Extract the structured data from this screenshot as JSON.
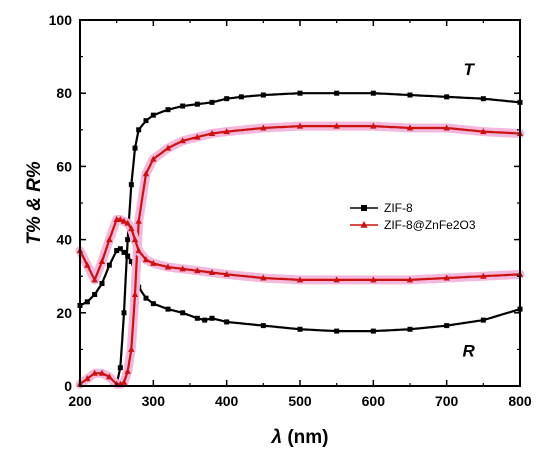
{
  "chart_data": {
    "type": "line",
    "xlabel_symbol": "λ",
    "xlabel_unit": " (nm)",
    "ylabel": "T% & R%",
    "xlim": [
      200,
      800
    ],
    "ylim": [
      0,
      100
    ],
    "xticks": [
      200,
      300,
      400,
      500,
      600,
      700,
      800
    ],
    "yticks": [
      0,
      20,
      40,
      60,
      80,
      100
    ],
    "grid": false,
    "legend_position": "right-middle",
    "annotations": [
      {
        "text": "T",
        "x": 730,
        "y": 85
      },
      {
        "text": "R",
        "x": 730,
        "y": 8
      }
    ],
    "series": [
      {
        "name": "ZIF-8",
        "marker": "square",
        "color": "#000000",
        "curves": [
          {
            "label": "T",
            "x": [
              200,
              210,
              220,
              230,
              240,
              245,
              250,
              255,
              260,
              265,
              270,
              275,
              280,
              290,
              300,
              320,
              340,
              360,
              380,
              400,
              420,
              450,
              500,
              550,
              600,
              650,
              700,
              750,
              800
            ],
            "y": [
              0.5,
              2,
              3.5,
              3.5,
              2.5,
              0.5,
              0.5,
              5,
              20,
              40,
              55,
              65,
              70,
              72.5,
              74,
              75.5,
              76.5,
              77,
              77.5,
              78.5,
              79,
              79.5,
              80,
              80,
              80,
              79.5,
              79,
              78.5,
              77.5
            ]
          },
          {
            "label": "R",
            "x": [
              200,
              210,
              220,
              230,
              240,
              250,
              255,
              260,
              265,
              270,
              275,
              280,
              290,
              300,
              320,
              340,
              360,
              370,
              380,
              400,
              450,
              500,
              550,
              600,
              650,
              700,
              750,
              800
            ],
            "y": [
              22,
              23,
              25,
              28,
              33,
              37,
              37.5,
              36.5,
              35.5,
              34,
              31,
              27,
              24,
              22.5,
              21,
              20,
              18.5,
              18,
              18.5,
              17.5,
              16.5,
              15.5,
              15,
              15,
              15.5,
              16.5,
              18,
              21
            ]
          }
        ]
      },
      {
        "name": "ZIF-8@ZnFe2O3",
        "marker": "triangle",
        "color": "#cc1111",
        "curves": [
          {
            "label": "T",
            "x": [
              200,
              210,
              220,
              230,
              240,
              250,
              255,
              260,
              265,
              270,
              275,
              280,
              290,
              300,
              320,
              340,
              360,
              380,
              400,
              450,
              500,
              550,
              600,
              650,
              700,
              750,
              800
            ],
            "y": [
              0.5,
              2,
              3.5,
              3.5,
              2.5,
              0.5,
              0.5,
              1,
              4,
              10,
              25,
              45,
              58,
              62,
              65,
              67,
              68,
              69,
              69.5,
              70.5,
              71,
              71,
              71,
              70.5,
              70.5,
              69.5,
              69
            ]
          },
          {
            "label": "R",
            "x": [
              200,
              210,
              220,
              230,
              240,
              250,
              255,
              260,
              265,
              270,
              275,
              280,
              290,
              300,
              320,
              340,
              360,
              380,
              400,
              450,
              500,
              550,
              600,
              650,
              700,
              750,
              800
            ],
            "y": [
              37,
              33,
              29,
              34,
              40,
              45.5,
              45.5,
              45,
              44.5,
              43,
              40,
              37,
              34.5,
              33.5,
              32.5,
              32,
              31.5,
              31,
              30.5,
              29.5,
              29,
              29,
              29,
              29,
              29.5,
              30,
              30.5
            ]
          }
        ]
      }
    ]
  }
}
